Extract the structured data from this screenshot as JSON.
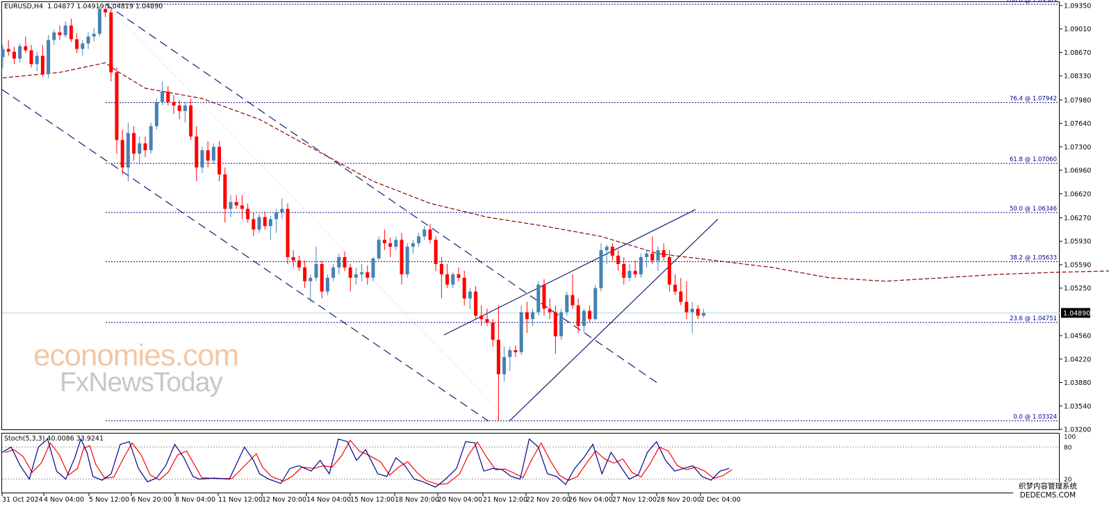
{
  "header": {
    "symbol_line": "EURUSD,H4  1.04877 1.04919 1.04819 1.04890"
  },
  "stoch_header": "Stoch(5,3,3) 40.0086 33.9241",
  "watermark": {
    "line1": "economies.com",
    "line2": "FxNewsToday"
  },
  "corner_mark": {
    "line1": "织梦内容管理系统",
    "line2": "DEDECMS.COM"
  },
  "colors": {
    "bull": "#4682b4",
    "bear": "#ff0000",
    "ma": "#8b0000",
    "channel": "#191970",
    "fib": "#00008b",
    "stoch_main": "#00008b",
    "stoch_signal": "#ff0000",
    "bid_line": "#add8e6",
    "price_tag_bg": "#000000"
  },
  "chart_data": {
    "type": "candlestick",
    "symbol": "EURUSD",
    "timeframe": "H4",
    "price_axis": {
      "range": [
        1.032,
        1.094
      ],
      "ticks": [
        "1.09350",
        "1.09010",
        "1.08670",
        "1.08330",
        "1.07980",
        "1.07640",
        "1.07300",
        "1.06960",
        "1.06620",
        "1.06270",
        "1.05930",
        "1.05590",
        "1.05250",
        "1.04560",
        "1.04220",
        "1.03880",
        "1.03540",
        "1.03200"
      ]
    },
    "current_price": "1.04890",
    "time_labels": [
      "31 Oct 2024",
      "4 Nov 04:00",
      "5 Nov 12:00",
      "6 Nov 20:00",
      "8 Nov 04:00",
      "11 Nov 12:00",
      "12 Nov 20:00",
      "14 Nov 04:00",
      "15 Nov 12:00",
      "18 Nov 20:00",
      "20 Nov 04:00",
      "21 Nov 12:00",
      "22 Nov 20:00",
      "26 Nov 04:00",
      "27 Nov 12:00",
      "28 Nov 20:00",
      "2 Dec 04:00"
    ],
    "fibonacci": [
      {
        "label": "100.0 @ 1.09369",
        "price": 1.09369
      },
      {
        "label": "76.4 @ 1.07942",
        "price": 1.07942
      },
      {
        "label": "61.8 @ 1.07060",
        "price": 1.0706
      },
      {
        "label": "50.0 @ 1.06346",
        "price": 1.06346
      },
      {
        "label": "38.2 @ 1.05633",
        "price": 1.05633
      },
      {
        "label": "23.6 @ 1.04751",
        "price": 1.04751
      },
      {
        "label": "0.0 @ 1.03324",
        "price": 1.03324
      }
    ],
    "candles": [
      [
        1.086,
        1.0878,
        1.0845,
        1.0872
      ],
      [
        1.0872,
        1.0885,
        1.0862,
        1.0868
      ],
      [
        1.0868,
        1.0875,
        1.085,
        1.0858
      ],
      [
        1.0858,
        1.088,
        1.0852,
        1.0876
      ],
      [
        1.0876,
        1.089,
        1.0866,
        1.087
      ],
      [
        1.087,
        1.0878,
        1.0845,
        1.085
      ],
      [
        1.085,
        1.0868,
        1.084,
        1.0862
      ],
      [
        1.0862,
        1.0878,
        1.0832,
        1.0836
      ],
      [
        1.0836,
        1.0892,
        1.083,
        1.0885
      ],
      [
        1.0885,
        1.09,
        1.0878,
        1.0896
      ],
      [
        1.0896,
        1.0906,
        1.0885,
        1.0892
      ],
      [
        1.0892,
        1.0912,
        1.0888,
        1.0906
      ],
      [
        1.0906,
        1.0916,
        1.0882,
        1.0886
      ],
      [
        1.0886,
        1.0895,
        1.0866,
        1.0872
      ],
      [
        1.0872,
        1.0885,
        1.0862,
        1.088
      ],
      [
        1.088,
        1.0896,
        1.0872,
        1.089
      ],
      [
        1.089,
        1.0902,
        1.0883,
        1.0894
      ],
      [
        1.0894,
        1.0935,
        1.089,
        1.093
      ],
      [
        1.093,
        1.0937,
        1.0918,
        1.0925
      ],
      [
        1.0925,
        1.093,
        1.0825,
        1.0838
      ],
      [
        1.0838,
        1.0845,
        1.072,
        1.074
      ],
      [
        1.074,
        1.0755,
        1.069,
        1.07
      ],
      [
        1.07,
        1.0765,
        1.068,
        1.075
      ],
      [
        1.075,
        1.076,
        1.071,
        1.072
      ],
      [
        1.072,
        1.0745,
        1.0705,
        1.0735
      ],
      [
        1.0735,
        1.0745,
        1.0715,
        1.0725
      ],
      [
        1.0725,
        1.0765,
        1.072,
        1.076
      ],
      [
        1.076,
        1.08,
        1.0755,
        1.0795
      ],
      [
        1.0795,
        1.0825,
        1.079,
        1.081
      ],
      [
        1.081,
        1.0818,
        1.079,
        1.0795
      ],
      [
        1.0795,
        1.0805,
        1.0778,
        1.079
      ],
      [
        1.079,
        1.0798,
        1.077,
        1.0782
      ],
      [
        1.0782,
        1.0795,
        1.0765,
        1.079
      ],
      [
        1.079,
        1.08,
        1.074,
        1.0745
      ],
      [
        1.0745,
        1.076,
        1.068,
        1.07
      ],
      [
        1.07,
        1.073,
        1.0692,
        1.0725
      ],
      [
        1.0725,
        1.0738,
        1.07,
        1.071
      ],
      [
        1.071,
        1.0735,
        1.0705,
        1.073
      ],
      [
        1.073,
        1.0738,
        1.068,
        1.069
      ],
      [
        1.069,
        1.07,
        1.062,
        1.064
      ],
      [
        1.064,
        1.066,
        1.0628,
        1.065
      ],
      [
        1.065,
        1.066,
        1.064,
        1.0645
      ],
      [
        1.0645,
        1.066,
        1.0625,
        1.064
      ],
      [
        1.064,
        1.0648,
        1.062,
        1.0625
      ],
      [
        1.0625,
        1.0635,
        1.06,
        1.061
      ],
      [
        1.061,
        1.0632,
        1.0605,
        1.0628
      ],
      [
        1.0628,
        1.0636,
        1.061,
        1.0615
      ],
      [
        1.0615,
        1.063,
        1.0595,
        1.0625
      ],
      [
        1.0625,
        1.064,
        1.0605,
        1.0635
      ],
      [
        1.0635,
        1.0655,
        1.0625,
        1.064
      ],
      [
        1.064,
        1.0648,
        1.056,
        1.057
      ],
      [
        1.057,
        1.058,
        1.0555,
        1.0565
      ],
      [
        1.0565,
        1.0572,
        1.055,
        1.0555
      ],
      [
        1.0555,
        1.0565,
        1.0525,
        1.0535
      ],
      [
        1.0535,
        1.0545,
        1.0505,
        1.054
      ],
      [
        1.054,
        1.0585,
        1.0535,
        1.056
      ],
      [
        1.056,
        1.0565,
        1.051,
        1.052
      ],
      [
        1.052,
        1.0545,
        1.0515,
        1.054
      ],
      [
        1.054,
        1.056,
        1.0535,
        1.0555
      ],
      [
        1.0555,
        1.0575,
        1.0545,
        1.057
      ],
      [
        1.057,
        1.0578,
        1.055,
        1.0555
      ],
      [
        1.0555,
        1.056,
        1.052,
        1.054
      ],
      [
        1.054,
        1.0555,
        1.053,
        1.0545
      ],
      [
        1.0545,
        1.056,
        1.0535,
        1.0548
      ],
      [
        1.0548,
        1.0558,
        1.053,
        1.054
      ],
      [
        1.054,
        1.057,
        1.0535,
        1.0568
      ],
      [
        1.0568,
        1.06,
        1.0565,
        1.0595
      ],
      [
        1.0595,
        1.061,
        1.058,
        1.059
      ],
      [
        1.059,
        1.0598,
        1.057,
        1.0585
      ],
      [
        1.0585,
        1.06,
        1.058,
        1.0595
      ],
      [
        1.0595,
        1.0605,
        1.053,
        1.0545
      ],
      [
        1.0545,
        1.059,
        1.054,
        1.0585
      ],
      [
        1.0585,
        1.0595,
        1.0575,
        1.059
      ],
      [
        1.059,
        1.0605,
        1.0585,
        1.06
      ],
      [
        1.06,
        1.0615,
        1.0595,
        1.061
      ],
      [
        1.061,
        1.0618,
        1.059,
        1.0595
      ],
      [
        1.0595,
        1.06,
        1.055,
        1.056
      ],
      [
        1.056,
        1.057,
        1.051,
        1.0545
      ],
      [
        1.0545,
        1.056,
        1.0525,
        1.053
      ],
      [
        1.053,
        1.0548,
        1.0525,
        1.0545
      ],
      [
        1.0545,
        1.0555,
        1.0535,
        1.054
      ],
      [
        1.054,
        1.055,
        1.05,
        1.051
      ],
      [
        1.051,
        1.0525,
        1.0495,
        1.052
      ],
      [
        1.052,
        1.0528,
        1.048,
        1.0485
      ],
      [
        1.0485,
        1.05,
        1.047,
        1.048
      ],
      [
        1.048,
        1.0495,
        1.047,
        1.0475
      ],
      [
        1.0475,
        1.048,
        1.044,
        1.045
      ],
      [
        1.045,
        1.05,
        1.0332,
        1.04
      ],
      [
        1.04,
        1.044,
        1.039,
        1.0425
      ],
      [
        1.0425,
        1.044,
        1.0405,
        1.0435
      ],
      [
        1.0435,
        1.0442,
        1.0425,
        1.0432
      ],
      [
        1.0432,
        1.05,
        1.0428,
        1.049
      ],
      [
        1.049,
        1.0505,
        1.046,
        1.048
      ],
      [
        1.048,
        1.0495,
        1.047,
        1.049
      ],
      [
        1.049,
        1.0535,
        1.0485,
        1.053
      ],
      [
        1.053,
        1.0538,
        1.0485,
        1.0495
      ],
      [
        1.0495,
        1.051,
        1.048,
        1.049
      ],
      [
        1.049,
        1.05,
        1.043,
        1.0455
      ],
      [
        1.0455,
        1.0495,
        1.045,
        1.049
      ],
      [
        1.049,
        1.052,
        1.0485,
        1.0515
      ],
      [
        1.0515,
        1.0545,
        1.0495,
        1.05
      ],
      [
        1.05,
        1.051,
        1.046,
        1.047
      ],
      [
        1.047,
        1.0495,
        1.046,
        1.0492
      ],
      [
        1.0492,
        1.05,
        1.0475,
        1.048
      ],
      [
        1.048,
        1.053,
        1.0478,
        1.0525
      ],
      [
        1.0525,
        1.059,
        1.052,
        1.058
      ],
      [
        1.058,
        1.0588,
        1.056,
        1.0585
      ],
      [
        1.0585,
        1.059,
        1.0565,
        1.0572
      ],
      [
        1.0572,
        1.058,
        1.055,
        1.056
      ],
      [
        1.056,
        1.057,
        1.053,
        1.054
      ],
      [
        1.054,
        1.056,
        1.0535,
        1.055
      ],
      [
        1.055,
        1.0565,
        1.054,
        1.0545
      ],
      [
        1.0545,
        1.0575,
        1.054,
        1.057
      ],
      [
        1.057,
        1.058,
        1.0555,
        1.0575
      ],
      [
        1.0575,
        1.06,
        1.056,
        1.0565
      ],
      [
        1.0565,
        1.0585,
        1.055,
        1.058
      ],
      [
        1.058,
        1.059,
        1.0565,
        1.057
      ],
      [
        1.057,
        1.058,
        1.052,
        1.053
      ],
      [
        1.053,
        1.0545,
        1.0515,
        1.052
      ],
      [
        1.052,
        1.054,
        1.05,
        1.0505
      ],
      [
        1.0505,
        1.0535,
        1.048,
        1.049
      ],
      [
        1.049,
        1.0505,
        1.046,
        1.0495
      ],
      [
        1.0495,
        1.05,
        1.048,
        1.0485
      ],
      [
        1.0485,
        1.0495,
        1.0482,
        1.0489
      ]
    ],
    "moving_average": [
      [
        0,
        1.083
      ],
      [
        10,
        1.0838
      ],
      [
        18,
        1.0852
      ],
      [
        20,
        1.084
      ],
      [
        25,
        1.0815
      ],
      [
        35,
        1.08
      ],
      [
        45,
        1.077
      ],
      [
        55,
        1.0725
      ],
      [
        65,
        1.068
      ],
      [
        75,
        1.0648
      ],
      [
        85,
        1.0628
      ],
      [
        95,
        1.0615
      ],
      [
        105,
        1.06
      ],
      [
        115,
        1.0575
      ],
      [
        125,
        1.0565
      ],
      [
        135,
        1.0555
      ],
      [
        145,
        1.054
      ],
      [
        155,
        1.0535
      ],
      [
        165,
        1.054
      ],
      [
        175,
        1.0545
      ],
      [
        185,
        1.0548
      ],
      [
        195,
        1.055
      ],
      [
        205,
        1.0545
      ],
      [
        210,
        1.0538
      ]
    ],
    "stochastic": {
      "levels": [
        80,
        20
      ],
      "axis_labels": [
        "100",
        "80",
        "20",
        "0"
      ],
      "main": [
        [
          0,
          70
        ],
        [
          6,
          80
        ],
        [
          12,
          45
        ],
        [
          18,
          20
        ],
        [
          24,
          80
        ],
        [
          30,
          95
        ],
        [
          36,
          35
        ],
        [
          42,
          20
        ],
        [
          48,
          60
        ],
        [
          52,
          95
        ],
        [
          56,
          70
        ],
        [
          60,
          25
        ],
        [
          66,
          18
        ],
        [
          72,
          30
        ],
        [
          78,
          85
        ],
        [
          84,
          90
        ],
        [
          90,
          40
        ],
        [
          96,
          15
        ],
        [
          102,
          22
        ],
        [
          108,
          45
        ],
        [
          114,
          85
        ],
        [
          120,
          60
        ],
        [
          126,
          25
        ],
        [
          130,
          20
        ],
        [
          140,
          22
        ],
        [
          150,
          20
        ],
        [
          160,
          80
        ],
        [
          166,
          55
        ],
        [
          170,
          30
        ],
        [
          176,
          20
        ],
        [
          184,
          12
        ],
        [
          190,
          40
        ],
        [
          196,
          45
        ],
        [
          204,
          35
        ],
        [
          210,
          55
        ],
        [
          216,
          30
        ],
        [
          222,
          95
        ],
        [
          228,
          90
        ],
        [
          234,
          55
        ],
        [
          240,
          75
        ],
        [
          248,
          30
        ],
        [
          254,
          25
        ],
        [
          260,
          60
        ],
        [
          266,
          45
        ],
        [
          272,
          20
        ],
        [
          278,
          15
        ],
        [
          286,
          5
        ],
        [
          292,
          18
        ],
        [
          300,
          40
        ],
        [
          306,
          90
        ],
        [
          312,
          88
        ],
        [
          318,
          35
        ],
        [
          324,
          40
        ],
        [
          330,
          38
        ],
        [
          336,
          25
        ],
        [
          342,
          20
        ],
        [
          348,
          95
        ],
        [
          354,
          80
        ],
        [
          360,
          30
        ],
        [
          366,
          25
        ],
        [
          372,
          10
        ],
        [
          378,
          40
        ],
        [
          384,
          60
        ],
        [
          390,
          85
        ],
        [
          396,
          30
        ],
        [
          402,
          70
        ],
        [
          408,
          45
        ],
        [
          414,
          20
        ],
        [
          420,
          28
        ],
        [
          426,
          70
        ],
        [
          432,
          90
        ],
        [
          438,
          55
        ],
        [
          444,
          35
        ],
        [
          450,
          40
        ],
        [
          456,
          45
        ],
        [
          462,
          25
        ],
        [
          468,
          18
        ],
        [
          474,
          35
        ],
        [
          480,
          40
        ]
      ]
    }
  }
}
